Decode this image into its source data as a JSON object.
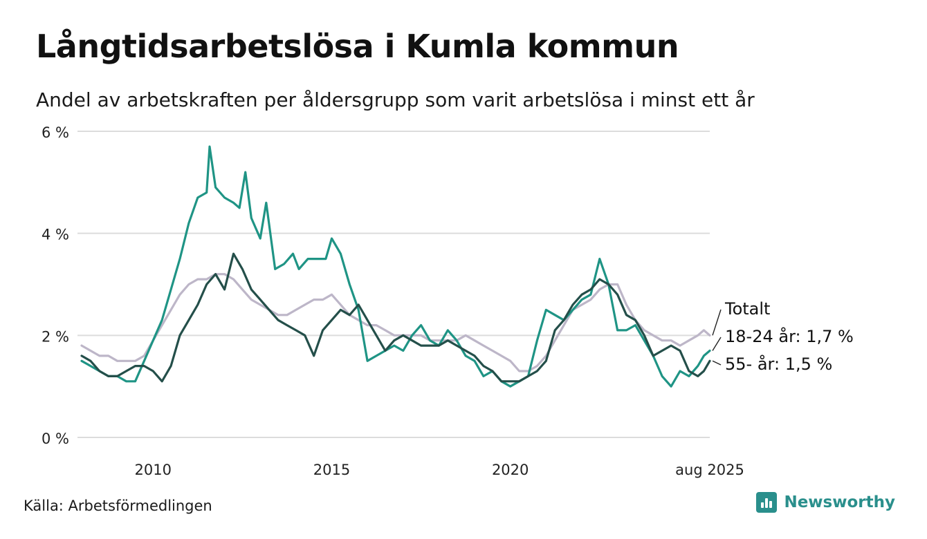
{
  "title": "Långtidsarbetslösa i Kumla kommun",
  "subtitle": "Andel av arbetskraften per åldersgrupp som varit arbetslösa i minst ett år",
  "source": "Källa: Arbetsförmedlingen",
  "brand": "Newsworthy",
  "colors": {
    "totalt": "#bdb6c8",
    "age_18_24": "#1f9485",
    "age_55": "#244f4a",
    "grid": "#dcdcdc",
    "brand": "#2a8f8c"
  },
  "chart_data": {
    "type": "line",
    "xlim": [
      "2008-01",
      "2025-08"
    ],
    "ylim": [
      0,
      6
    ],
    "y_ticks": [
      "0 %",
      "2 %",
      "4 %",
      "6 %"
    ],
    "y_tick_values": [
      0,
      2,
      4,
      6
    ],
    "x_ticks": [
      "2010",
      "2015",
      "2020",
      "aug 2025"
    ],
    "x_tick_values": [
      "2010-01",
      "2015-01",
      "2020-01",
      "2025-08"
    ],
    "grid": true,
    "series": [
      {
        "name": "Totalt",
        "label": "Totalt",
        "color": "#bdb6c8",
        "points": [
          [
            "2008-01",
            1.8
          ],
          [
            "2008-04",
            1.7
          ],
          [
            "2008-07",
            1.6
          ],
          [
            "2008-10",
            1.6
          ],
          [
            "2009-01",
            1.5
          ],
          [
            "2009-04",
            1.5
          ],
          [
            "2009-07",
            1.5
          ],
          [
            "2009-10",
            1.6
          ],
          [
            "2010-01",
            1.9
          ],
          [
            "2010-04",
            2.2
          ],
          [
            "2010-07",
            2.5
          ],
          [
            "2010-10",
            2.8
          ],
          [
            "2011-01",
            3.0
          ],
          [
            "2011-04",
            3.1
          ],
          [
            "2011-07",
            3.1
          ],
          [
            "2011-10",
            3.2
          ],
          [
            "2012-01",
            3.2
          ],
          [
            "2012-04",
            3.1
          ],
          [
            "2012-07",
            2.9
          ],
          [
            "2012-10",
            2.7
          ],
          [
            "2013-01",
            2.6
          ],
          [
            "2013-04",
            2.5
          ],
          [
            "2013-07",
            2.4
          ],
          [
            "2013-10",
            2.4
          ],
          [
            "2014-01",
            2.5
          ],
          [
            "2014-04",
            2.6
          ],
          [
            "2014-07",
            2.7
          ],
          [
            "2014-10",
            2.7
          ],
          [
            "2015-01",
            2.8
          ],
          [
            "2015-04",
            2.6
          ],
          [
            "2015-07",
            2.4
          ],
          [
            "2015-10",
            2.3
          ],
          [
            "2016-01",
            2.2
          ],
          [
            "2016-04",
            2.2
          ],
          [
            "2016-07",
            2.1
          ],
          [
            "2016-10",
            2.0
          ],
          [
            "2017-01",
            2.0
          ],
          [
            "2017-04",
            2.0
          ],
          [
            "2017-07",
            2.0
          ],
          [
            "2017-10",
            1.9
          ],
          [
            "2018-01",
            1.9
          ],
          [
            "2018-04",
            1.9
          ],
          [
            "2018-07",
            1.9
          ],
          [
            "2018-10",
            2.0
          ],
          [
            "2019-01",
            1.9
          ],
          [
            "2019-04",
            1.8
          ],
          [
            "2019-07",
            1.7
          ],
          [
            "2019-10",
            1.6
          ],
          [
            "2020-01",
            1.5
          ],
          [
            "2020-04",
            1.3
          ],
          [
            "2020-07",
            1.3
          ],
          [
            "2020-10",
            1.4
          ],
          [
            "2021-01",
            1.6
          ],
          [
            "2021-04",
            1.9
          ],
          [
            "2021-07",
            2.2
          ],
          [
            "2021-10",
            2.5
          ],
          [
            "2022-01",
            2.6
          ],
          [
            "2022-04",
            2.7
          ],
          [
            "2022-07",
            2.9
          ],
          [
            "2022-10",
            3.0
          ],
          [
            "2023-01",
            3.0
          ],
          [
            "2023-04",
            2.6
          ],
          [
            "2023-07",
            2.3
          ],
          [
            "2023-10",
            2.1
          ],
          [
            "2024-01",
            2.0
          ],
          [
            "2024-04",
            1.9
          ],
          [
            "2024-07",
            1.9
          ],
          [
            "2024-10",
            1.8
          ],
          [
            "2025-01",
            1.9
          ],
          [
            "2025-04",
            2.0
          ],
          [
            "2025-06",
            2.1
          ],
          [
            "2025-08",
            2.0
          ]
        ]
      },
      {
        "name": "18-24 år",
        "label": "18-24 år: 1,7 %",
        "color": "#1f9485",
        "points": [
          [
            "2008-01",
            1.5
          ],
          [
            "2008-04",
            1.4
          ],
          [
            "2008-07",
            1.3
          ],
          [
            "2008-10",
            1.2
          ],
          [
            "2009-01",
            1.2
          ],
          [
            "2009-04",
            1.1
          ],
          [
            "2009-07",
            1.1
          ],
          [
            "2009-10",
            1.5
          ],
          [
            "2010-01",
            1.9
          ],
          [
            "2010-04",
            2.3
          ],
          [
            "2010-07",
            2.9
          ],
          [
            "2010-10",
            3.5
          ],
          [
            "2011-01",
            4.2
          ],
          [
            "2011-04",
            4.7
          ],
          [
            "2011-07",
            4.8
          ],
          [
            "2011-08",
            5.7
          ],
          [
            "2011-10",
            4.9
          ],
          [
            "2012-01",
            4.7
          ],
          [
            "2012-04",
            4.6
          ],
          [
            "2012-06",
            4.5
          ],
          [
            "2012-08",
            5.2
          ],
          [
            "2012-10",
            4.3
          ],
          [
            "2013-01",
            3.9
          ],
          [
            "2013-03",
            4.6
          ],
          [
            "2013-06",
            3.3
          ],
          [
            "2013-09",
            3.4
          ],
          [
            "2013-12",
            3.6
          ],
          [
            "2014-02",
            3.3
          ],
          [
            "2014-05",
            3.5
          ],
          [
            "2014-08",
            3.5
          ],
          [
            "2014-11",
            3.5
          ],
          [
            "2015-01",
            3.9
          ],
          [
            "2015-04",
            3.6
          ],
          [
            "2015-07",
            3.0
          ],
          [
            "2015-10",
            2.5
          ],
          [
            "2016-01",
            1.5
          ],
          [
            "2016-04",
            1.6
          ],
          [
            "2016-07",
            1.7
          ],
          [
            "2016-10",
            1.8
          ],
          [
            "2017-01",
            1.7
          ],
          [
            "2017-04",
            2.0
          ],
          [
            "2017-07",
            2.2
          ],
          [
            "2017-10",
            1.9
          ],
          [
            "2018-01",
            1.8
          ],
          [
            "2018-04",
            2.1
          ],
          [
            "2018-07",
            1.9
          ],
          [
            "2018-10",
            1.6
          ],
          [
            "2019-01",
            1.5
          ],
          [
            "2019-04",
            1.2
          ],
          [
            "2019-07",
            1.3
          ],
          [
            "2019-10",
            1.1
          ],
          [
            "2020-01",
            1.0
          ],
          [
            "2020-04",
            1.1
          ],
          [
            "2020-07",
            1.2
          ],
          [
            "2020-10",
            1.9
          ],
          [
            "2021-01",
            2.5
          ],
          [
            "2021-04",
            2.4
          ],
          [
            "2021-07",
            2.3
          ],
          [
            "2021-10",
            2.5
          ],
          [
            "2022-01",
            2.7
          ],
          [
            "2022-04",
            2.8
          ],
          [
            "2022-07",
            3.5
          ],
          [
            "2022-10",
            3.0
          ],
          [
            "2023-01",
            2.1
          ],
          [
            "2023-04",
            2.1
          ],
          [
            "2023-07",
            2.2
          ],
          [
            "2023-10",
            1.9
          ],
          [
            "2024-01",
            1.6
          ],
          [
            "2024-04",
            1.2
          ],
          [
            "2024-07",
            1.0
          ],
          [
            "2024-10",
            1.3
          ],
          [
            "2025-01",
            1.2
          ],
          [
            "2025-04",
            1.4
          ],
          [
            "2025-06",
            1.6
          ],
          [
            "2025-08",
            1.7
          ]
        ]
      },
      {
        "name": "55- år",
        "label": "55- år: 1,5 %",
        "color": "#244f4a",
        "points": [
          [
            "2008-01",
            1.6
          ],
          [
            "2008-04",
            1.5
          ],
          [
            "2008-07",
            1.3
          ],
          [
            "2008-10",
            1.2
          ],
          [
            "2009-01",
            1.2
          ],
          [
            "2009-04",
            1.3
          ],
          [
            "2009-07",
            1.4
          ],
          [
            "2009-10",
            1.4
          ],
          [
            "2010-01",
            1.3
          ],
          [
            "2010-04",
            1.1
          ],
          [
            "2010-07",
            1.4
          ],
          [
            "2010-10",
            2.0
          ],
          [
            "2011-01",
            2.3
          ],
          [
            "2011-04",
            2.6
          ],
          [
            "2011-07",
            3.0
          ],
          [
            "2011-10",
            3.2
          ],
          [
            "2012-01",
            2.9
          ],
          [
            "2012-04",
            3.6
          ],
          [
            "2012-07",
            3.3
          ],
          [
            "2012-10",
            2.9
          ],
          [
            "2013-01",
            2.7
          ],
          [
            "2013-04",
            2.5
          ],
          [
            "2013-07",
            2.3
          ],
          [
            "2013-10",
            2.2
          ],
          [
            "2014-01",
            2.1
          ],
          [
            "2014-04",
            2.0
          ],
          [
            "2014-07",
            1.6
          ],
          [
            "2014-10",
            2.1
          ],
          [
            "2015-01",
            2.3
          ],
          [
            "2015-04",
            2.5
          ],
          [
            "2015-07",
            2.4
          ],
          [
            "2015-10",
            2.6
          ],
          [
            "2016-01",
            2.3
          ],
          [
            "2016-04",
            2.0
          ],
          [
            "2016-07",
            1.7
          ],
          [
            "2016-10",
            1.9
          ],
          [
            "2017-01",
            2.0
          ],
          [
            "2017-04",
            1.9
          ],
          [
            "2017-07",
            1.8
          ],
          [
            "2017-10",
            1.8
          ],
          [
            "2018-01",
            1.8
          ],
          [
            "2018-04",
            1.9
          ],
          [
            "2018-07",
            1.8
          ],
          [
            "2018-10",
            1.7
          ],
          [
            "2019-01",
            1.6
          ],
          [
            "2019-04",
            1.4
          ],
          [
            "2019-07",
            1.3
          ],
          [
            "2019-10",
            1.1
          ],
          [
            "2020-01",
            1.1
          ],
          [
            "2020-04",
            1.1
          ],
          [
            "2020-07",
            1.2
          ],
          [
            "2020-10",
            1.3
          ],
          [
            "2021-01",
            1.5
          ],
          [
            "2021-04",
            2.1
          ],
          [
            "2021-07",
            2.3
          ],
          [
            "2021-10",
            2.6
          ],
          [
            "2022-01",
            2.8
          ],
          [
            "2022-04",
            2.9
          ],
          [
            "2022-07",
            3.1
          ],
          [
            "2022-10",
            3.0
          ],
          [
            "2023-01",
            2.8
          ],
          [
            "2023-04",
            2.4
          ],
          [
            "2023-07",
            2.3
          ],
          [
            "2023-10",
            2.0
          ],
          [
            "2024-01",
            1.6
          ],
          [
            "2024-04",
            1.7
          ],
          [
            "2024-07",
            1.8
          ],
          [
            "2024-10",
            1.7
          ],
          [
            "2025-01",
            1.3
          ],
          [
            "2025-04",
            1.2
          ],
          [
            "2025-06",
            1.3
          ],
          [
            "2025-08",
            1.5
          ]
        ]
      }
    ]
  }
}
